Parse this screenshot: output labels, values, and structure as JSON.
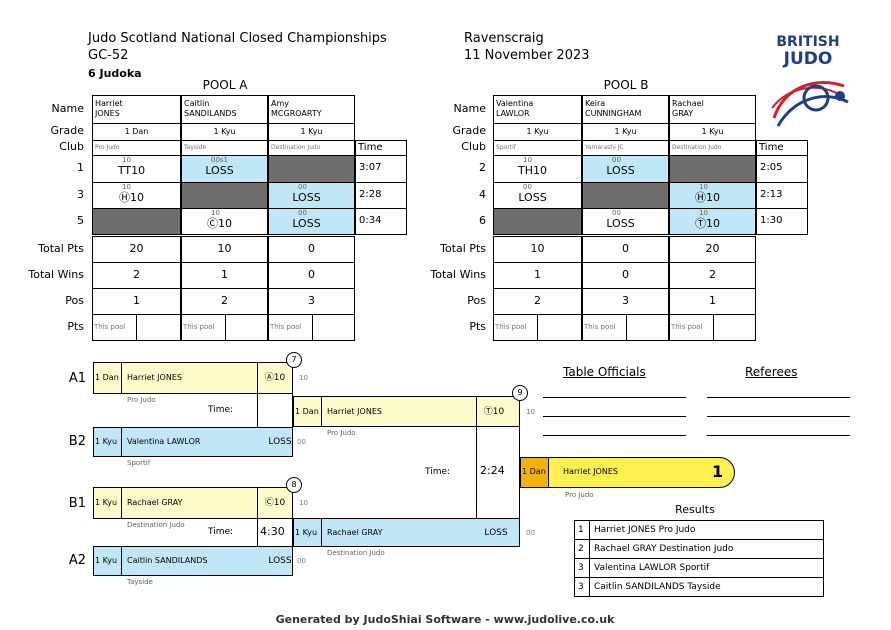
{
  "header": {
    "title": "Judo Scotland National Closed Championships",
    "category": "GC-52",
    "judoka": "6 Judoka",
    "venue": "Ravenscraig",
    "date": "11 November 2023",
    "logo": [
      "BRITISH",
      "JUDO"
    ]
  },
  "pool_labels": {
    "name": "Name",
    "grade": "Grade",
    "club": "Club",
    "time": "Time",
    "total_pts": "Total Pts",
    "total_wins": "Total Wins",
    "pos": "Pos",
    "pts": "Pts",
    "this_pool": "This pool"
  },
  "pools": [
    {
      "title": "POOL A",
      "competitors": [
        {
          "name": [
            "Harriet",
            "JONES"
          ],
          "grade": "1 Dan",
          "club": "Pro Judo",
          "total_pts": 20,
          "total_wins": 2,
          "pos": 1
        },
        {
          "name": [
            "Caitlin",
            "SANDILANDS"
          ],
          "grade": "1 Kyu",
          "club": "Tayside",
          "total_pts": 10,
          "total_wins": 1,
          "pos": 2
        },
        {
          "name": [
            "Amy",
            "MCGROARTY"
          ],
          "grade": "1 Kyu",
          "club": "Destination Judo",
          "total_pts": 0,
          "total_wins": 0,
          "pos": 3
        }
      ],
      "matches": [
        {
          "number": "1",
          "cells": [
            {
              "score": "10",
              "result": "TT10"
            },
            {
              "score": "00s1",
              "result": "LOSS",
              "blue": true
            },
            null
          ],
          "time": "3:07"
        },
        {
          "number": "3",
          "cells": [
            {
              "score": "10",
              "result": "Ⓗ10"
            },
            null,
            {
              "score": "00",
              "result": "LOSS",
              "blue": true
            }
          ],
          "time": "2:28"
        },
        {
          "number": "5",
          "cells": [
            null,
            {
              "score": "10",
              "result": "Ⓒ10"
            },
            {
              "score": "00",
              "result": "LOSS",
              "blue": true
            }
          ],
          "time": "0:34"
        }
      ]
    },
    {
      "title": "POOL B",
      "competitors": [
        {
          "name": [
            "Valentina",
            "LAWLOR"
          ],
          "grade": "1 Kyu",
          "club": "Sportif",
          "total_pts": 10,
          "total_wins": 1,
          "pos": 2
        },
        {
          "name": [
            "Keira",
            "CUNNINGHAM"
          ],
          "grade": "1 Kyu",
          "club": "Yamarashi JC",
          "total_pts": 0,
          "total_wins": 0,
          "pos": 3
        },
        {
          "name": [
            "Rachael",
            "GRAY"
          ],
          "grade": "1 Kyu",
          "club": "Destination Judo",
          "total_pts": 20,
          "total_wins": 2,
          "pos": 1
        }
      ],
      "matches": [
        {
          "number": "2",
          "cells": [
            {
              "score": "10",
              "result": "TH10"
            },
            {
              "score": "00",
              "result": "LOSS",
              "blue": true
            },
            null
          ],
          "time": "2:05"
        },
        {
          "number": "4",
          "cells": [
            {
              "score": "00",
              "result": "LOSS"
            },
            null,
            {
              "score": "10",
              "result": "Ⓗ10",
              "blue": true
            }
          ],
          "time": "2:13"
        },
        {
          "number": "6",
          "cells": [
            null,
            {
              "score": "00",
              "result": "LOSS"
            },
            {
              "score": "10",
              "result": "Ⓣ10",
              "blue": true
            }
          ],
          "time": "1:30"
        }
      ]
    }
  ],
  "bracket": {
    "time_label": "Time:",
    "matches": [
      {
        "number": 7,
        "slots": [
          "A1",
          "B2"
        ],
        "fighters": [
          {
            "grade": "1 Dan",
            "name": "Harriet JONES",
            "club": "Pro Judo",
            "result": "Ⓐ10",
            "score": "10"
          },
          {
            "grade": "1 Kyu",
            "name": "Valentina LAWLOR",
            "club": "Sportif",
            "result": "LOSS",
            "score": "00"
          }
        ]
      },
      {
        "number": 8,
        "slots": [
          "B1",
          "A2"
        ],
        "time": "4:30",
        "fighters": [
          {
            "grade": "1 Kyu",
            "name": "Rachael GRAY",
            "club": "Destination Judo",
            "result": "Ⓒ10",
            "score": "10"
          },
          {
            "grade": "1 Kyu",
            "name": "Caitlin SANDILANDS",
            "club": "Tayside",
            "result": "LOSS",
            "score": "00"
          }
        ]
      },
      {
        "number": 9,
        "time": "2:24",
        "fighters": [
          {
            "grade": "1 Dan",
            "name": "Harriet JONES",
            "club": "Pro Judo",
            "result": "Ⓣ10",
            "score": "10"
          },
          {
            "grade": "1 Kyu",
            "name": "Rachael GRAY",
            "club": "Destination Judo",
            "result": "LOSS",
            "score": "00"
          }
        ]
      }
    ],
    "winner": {
      "grade": "1 Dan",
      "name": "Harriet JONES",
      "place": 1,
      "club": "Pro Judo"
    }
  },
  "officials": {
    "table": "Table Officials",
    "referees": "Referees"
  },
  "results": {
    "title": "Results",
    "rows": [
      [
        1,
        "Harriet JONES Pro Judo"
      ],
      [
        2,
        "Rachael GRAY Destination Judo"
      ],
      [
        3,
        "Valentina LAWLOR Sportif"
      ],
      [
        3,
        "Caitlin SANDILANDS Tayside"
      ]
    ]
  },
  "footer": "Generated by JudoShiai Software - www.judolive.co.uk"
}
